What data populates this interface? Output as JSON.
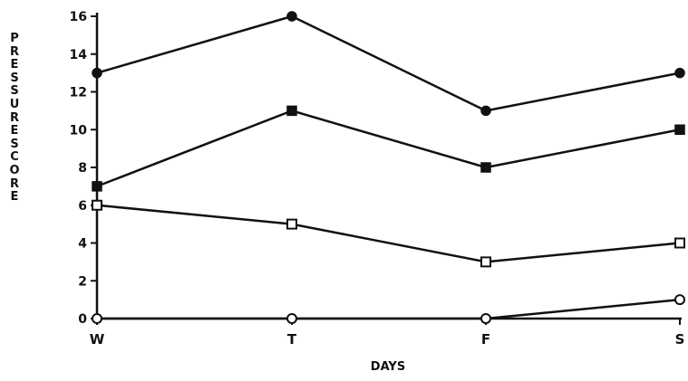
{
  "chart_data": {
    "type": "line",
    "xlabel": "DAYS",
    "ylabel": "PRESSURESCORE",
    "categories": [
      "W",
      "T",
      "F",
      "S"
    ],
    "ylim": [
      0,
      16
    ],
    "yticks": [
      "0",
      "2",
      "4",
      "6",
      "8",
      "10",
      "12",
      "14",
      "16"
    ],
    "grid": false,
    "series": [
      {
        "values": [
          13,
          16,
          11,
          13
        ],
        "marker": "filled-circle"
      },
      {
        "values": [
          7,
          11,
          8,
          10
        ],
        "marker": "filled-square"
      },
      {
        "values": [
          6,
          5,
          3,
          4
        ],
        "marker": "open-square"
      },
      {
        "values": [
          0,
          0,
          0,
          1
        ],
        "marker": "open-circle"
      }
    ]
  }
}
